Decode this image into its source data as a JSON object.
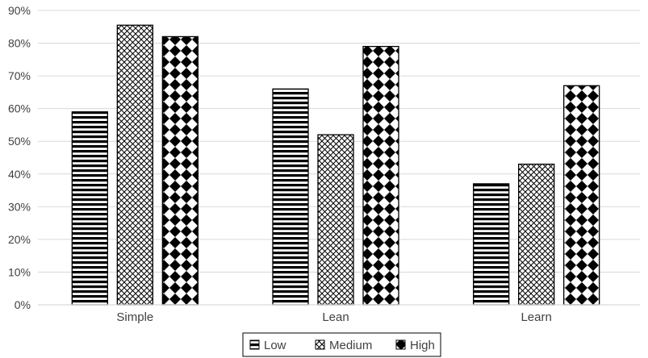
{
  "chart_data": {
    "type": "bar",
    "categories": [
      "Simple",
      "Lean",
      "Learn"
    ],
    "series": [
      {
        "name": "Low",
        "pattern": "horizontal-stripes",
        "values": [
          59,
          66,
          37
        ]
      },
      {
        "name": "Medium",
        "pattern": "crosshatch",
        "values": [
          85.5,
          52,
          43
        ]
      },
      {
        "name": "High",
        "pattern": "diamond-checker",
        "values": [
          82,
          79,
          67
        ]
      }
    ],
    "ylim": [
      0,
      90
    ],
    "yticks": [
      "0%",
      "10%",
      "20%",
      "30%",
      "40%",
      "50%",
      "60%",
      "70%",
      "80%",
      "90%"
    ],
    "grid": true,
    "legend_position": "bottom",
    "title": "",
    "xlabel": "",
    "ylabel": "",
    "colors": {
      "stroke": "#000000",
      "fill": "#000000",
      "grid": "#d9d9d9",
      "text": "#404040"
    }
  }
}
